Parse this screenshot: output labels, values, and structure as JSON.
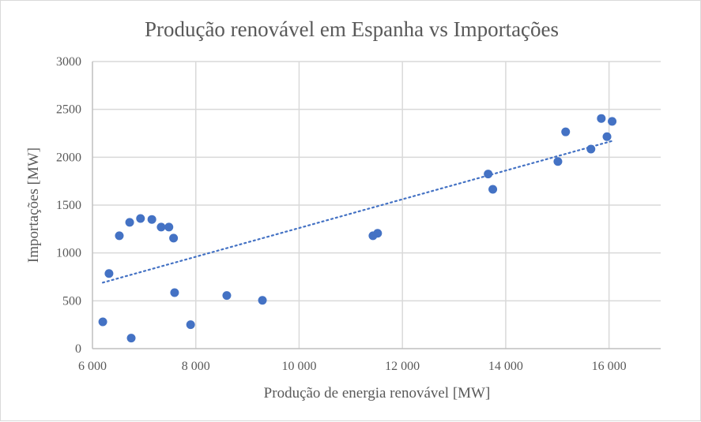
{
  "chart_data": {
    "type": "scatter",
    "title": "Produção renovável em Espanha vs Importações",
    "xlabel": "Produção de energia renovável [MW]",
    "ylabel": "Importações [MW]",
    "xlim": [
      6000,
      17000
    ],
    "ylim": [
      0,
      3000
    ],
    "xticks": [
      6000,
      8000,
      10000,
      12000,
      14000,
      16000
    ],
    "xtick_labels": [
      "6 000",
      "8 000",
      "10 000",
      "12 000",
      "14 000",
      "16 000"
    ],
    "yticks": [
      0,
      500,
      1000,
      1500,
      2000,
      2500,
      3000
    ],
    "ytick_labels": [
      "0",
      "500",
      "1000",
      "1500",
      "2000",
      "2500",
      "3000"
    ],
    "grid": true,
    "legend": "none",
    "marker_color": "#4472C4",
    "points": [
      [
        6200,
        280
      ],
      [
        6320,
        785
      ],
      [
        6520,
        1180
      ],
      [
        6720,
        1320
      ],
      [
        6750,
        110
      ],
      [
        6930,
        1360
      ],
      [
        7150,
        1350
      ],
      [
        7330,
        1270
      ],
      [
        7480,
        1270
      ],
      [
        7570,
        1155
      ],
      [
        7590,
        585
      ],
      [
        7900,
        250
      ],
      [
        8600,
        555
      ],
      [
        9290,
        505
      ],
      [
        11430,
        1180
      ],
      [
        11520,
        1205
      ],
      [
        13660,
        1825
      ],
      [
        13750,
        1665
      ],
      [
        15010,
        1955
      ],
      [
        15160,
        2265
      ],
      [
        15650,
        2085
      ],
      [
        15850,
        2405
      ],
      [
        15960,
        2215
      ],
      [
        16060,
        2375
      ]
    ],
    "trendline": {
      "type": "linear",
      "style": "dotted",
      "x": [
        6200,
        16060
      ],
      "y": [
        690,
        2170
      ]
    }
  }
}
